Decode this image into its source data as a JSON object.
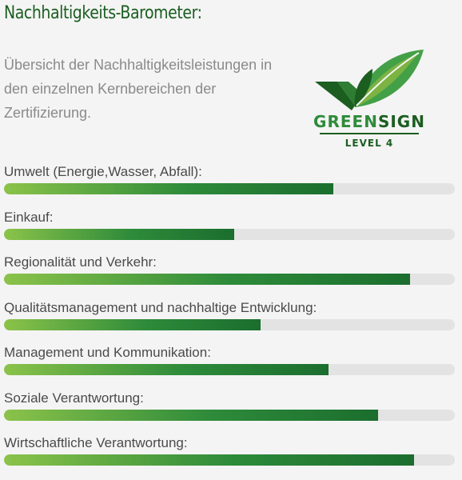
{
  "page": {
    "title": "Nachhaltigkeits-Barometer:",
    "intro": "Übersicht der Nachhaltigkeitsleistungen in den einzelnen Kernbereichen der Zertifizierung."
  },
  "logo": {
    "word_green": "GREEN",
    "word_sign": "SIGN",
    "level": "LEVEL 4"
  },
  "colors": {
    "title": "#1b5e20",
    "bar_start": "#8bc34a",
    "bar_end": "#1b6e2e",
    "track": "#e3e3e3"
  },
  "bars": [
    {
      "label": "Umwelt (Energie,Wasser, Abfall):",
      "value": 0.73
    },
    {
      "label": "Einkauf:",
      "value": 0.51
    },
    {
      "label": "Regionalität und Verkehr:",
      "value": 0.9
    },
    {
      "label": "Qualitätsmanagement und nachhaltige Entwicklung:",
      "value": 0.57
    },
    {
      "label": "Management und Kommunikation:",
      "value": 0.72
    },
    {
      "label": "Soziale Verantwortung:",
      "value": 0.83
    },
    {
      "label": "Wirtschaftliche Verantwortung:",
      "value": 0.91
    }
  ]
}
